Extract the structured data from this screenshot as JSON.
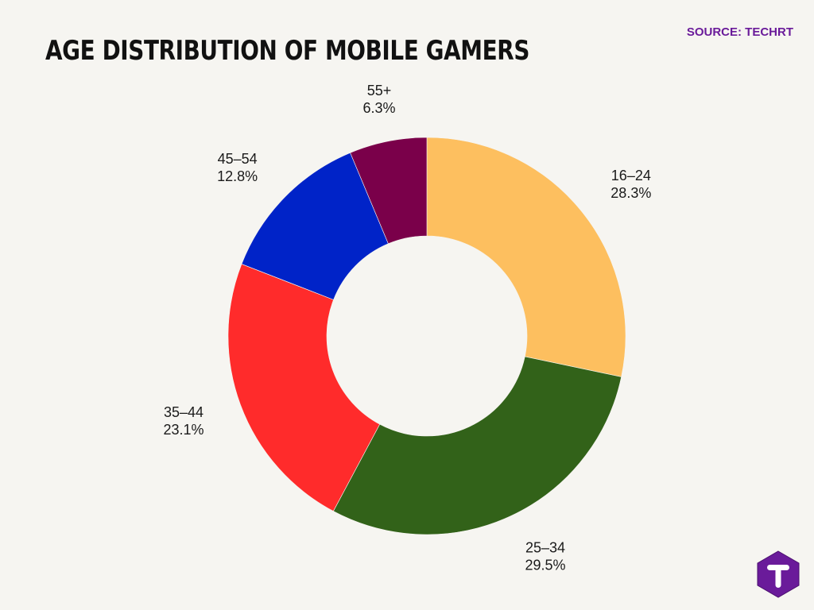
{
  "header": {
    "title": "AGE DISTRIBUTION OF MOBILE GAMERS",
    "source": "SOURCE: TECHRT"
  },
  "brand": {
    "logo_icon": "techrt-t-hexagon-logo",
    "logo_color": "#6a1b9a"
  },
  "chart_data": {
    "type": "pie",
    "variant": "donut",
    "title": "AGE DISTRIBUTION OF MOBILE GAMERS",
    "start": "12 o'clock, clockwise",
    "slices": [
      {
        "label": "16–24",
        "value": 28.3,
        "value_label": "28.3%",
        "color": "#fdbf5f"
      },
      {
        "label": "25–34",
        "value": 29.5,
        "value_label": "29.5%",
        "color": "#326219"
      },
      {
        "label": "35–44",
        "value": 23.1,
        "value_label": "23.1%",
        "color": "#ff2b2b"
      },
      {
        "label": "45–54",
        "value": 12.8,
        "value_label": "12.8%",
        "color": "#0023c8"
      },
      {
        "label": "55+",
        "value": 6.3,
        "value_label": "6.3%",
        "color": "#7a004a"
      }
    ]
  }
}
